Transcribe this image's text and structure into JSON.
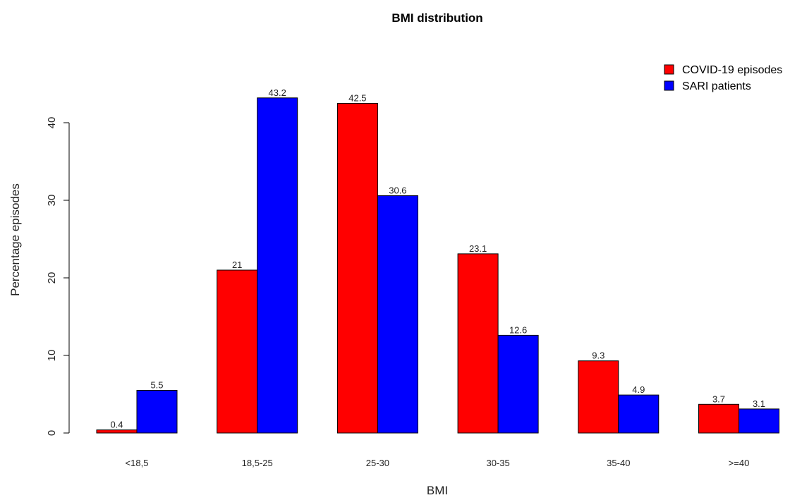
{
  "chart_data": {
    "type": "bar",
    "title": "BMI distribution",
    "xlabel": "BMI",
    "ylabel": "Percentage episodes",
    "categories": [
      "<18,5",
      "18,5-25",
      "25-30",
      "30-35",
      "35-40",
      ">=40"
    ],
    "series": [
      {
        "name": "COVID-19 episodes",
        "color": "#ff0000",
        "values": [
          0.4,
          21,
          42.5,
          23.1,
          9.3,
          3.7
        ],
        "labels": [
          "0.4",
          "21",
          "42.5",
          "23.1",
          "9.3",
          "3.7"
        ]
      },
      {
        "name": "SARI patients",
        "color": "#0000ff",
        "values": [
          5.5,
          43.2,
          30.6,
          12.6,
          4.9,
          3.1
        ],
        "labels": [
          "5.5",
          "43.2",
          "30.6",
          "12.6",
          "4.9",
          "3.1"
        ]
      }
    ],
    "yticks": [
      0,
      10,
      20,
      30,
      40
    ],
    "ylim": [
      0,
      45
    ],
    "legend_position": "top-right",
    "grid": false
  }
}
